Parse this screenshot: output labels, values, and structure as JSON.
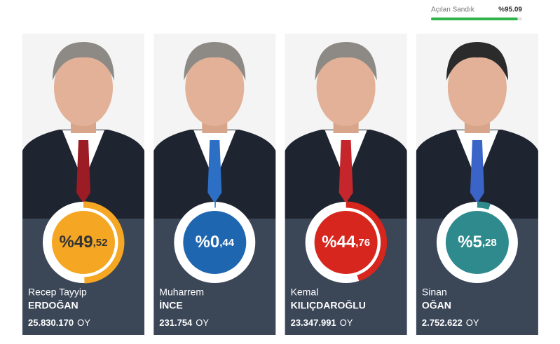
{
  "opened_boxes": {
    "label": "Açılan Sandık",
    "value": 95.09,
    "value_label": "%95.09",
    "color": "#2fb34a"
  },
  "vote_unit": "OY",
  "candidates": [
    {
      "first_name": "Recep Tayyip",
      "last_name": "ERDOĞAN",
      "percent": 49.52,
      "percent_main": "%49",
      "percent_decimal": ",52",
      "votes": "25.830.170",
      "color": "#f5a623",
      "text_color": "#333333",
      "tie_color": "#9b1c24"
    },
    {
      "first_name": "Muharrem",
      "last_name": "İNCE",
      "percent": 0.44,
      "percent_main": "%0",
      "percent_decimal": ",44",
      "votes": "231.754",
      "color": "#1f66b0",
      "text_color": "#ffffff",
      "tie_color": "#2c6fc4"
    },
    {
      "first_name": "Kemal",
      "last_name": "KILIÇDAROĞLU",
      "percent": 44.76,
      "percent_main": "%44",
      "percent_decimal": ",76",
      "votes": "23.347.991",
      "color": "#d7261e",
      "text_color": "#ffffff",
      "tie_color": "#c4262c"
    },
    {
      "first_name": "Sinan",
      "last_name": "OĞAN",
      "percent": 5.28,
      "percent_main": "%5",
      "percent_decimal": ",28",
      "votes": "2.752.622",
      "color": "#2e8a8c",
      "text_color": "#ffffff",
      "tie_color": "#3b64c8"
    }
  ]
}
